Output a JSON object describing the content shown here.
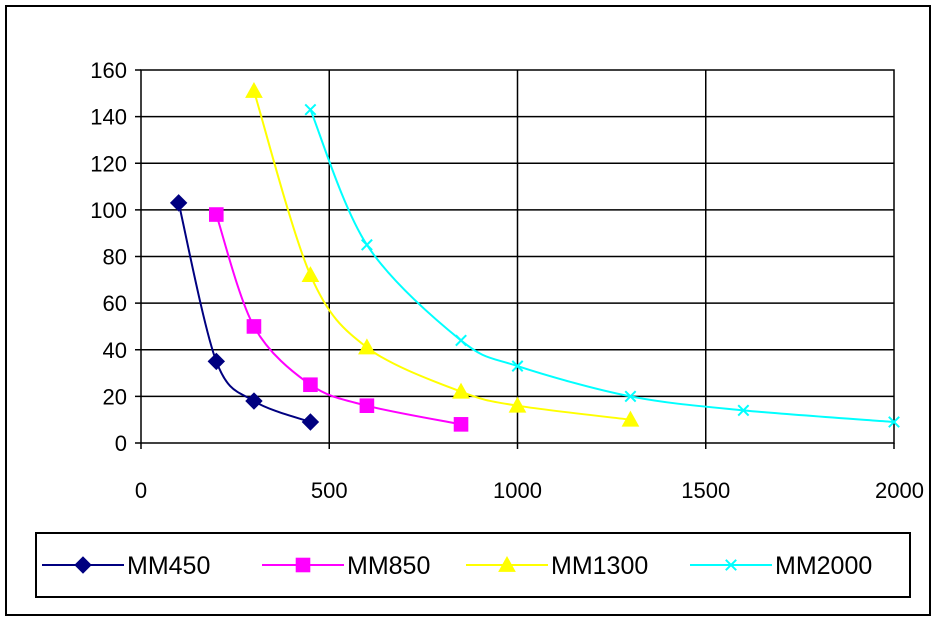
{
  "chart_data": {
    "type": "line",
    "title": "",
    "xlabel": "",
    "ylabel": "",
    "xlim": [
      0,
      2000
    ],
    "ylim": [
      0,
      160
    ],
    "x_ticks": [
      "0",
      "500",
      "1000",
      "1500",
      "2000"
    ],
    "y_ticks": [
      "0",
      "20",
      "40",
      "60",
      "80",
      "100",
      "120",
      "140",
      "160"
    ],
    "grid": true,
    "legend_position": "bottom",
    "series": [
      {
        "name": "MM450",
        "color": "#000080",
        "marker": "diamond",
        "x": [
          100,
          200,
          300,
          450
        ],
        "y": [
          103,
          35,
          18,
          9
        ]
      },
      {
        "name": "MM850",
        "color": "#FF00FF",
        "marker": "square",
        "x": [
          200,
          300,
          450,
          600,
          850
        ],
        "y": [
          98,
          50,
          25,
          16,
          8
        ]
      },
      {
        "name": "MM1300",
        "color": "#FFFF00",
        "marker": "triangle",
        "x": [
          300,
          450,
          600,
          850,
          1000,
          1300
        ],
        "y": [
          151,
          72,
          41,
          22,
          16,
          10
        ]
      },
      {
        "name": "MM2000",
        "color": "#00FFFF",
        "marker": "x",
        "x": [
          450,
          600,
          850,
          1000,
          1300,
          1600,
          2000
        ],
        "y": [
          143,
          85,
          44,
          33,
          20,
          14,
          9
        ]
      }
    ]
  }
}
